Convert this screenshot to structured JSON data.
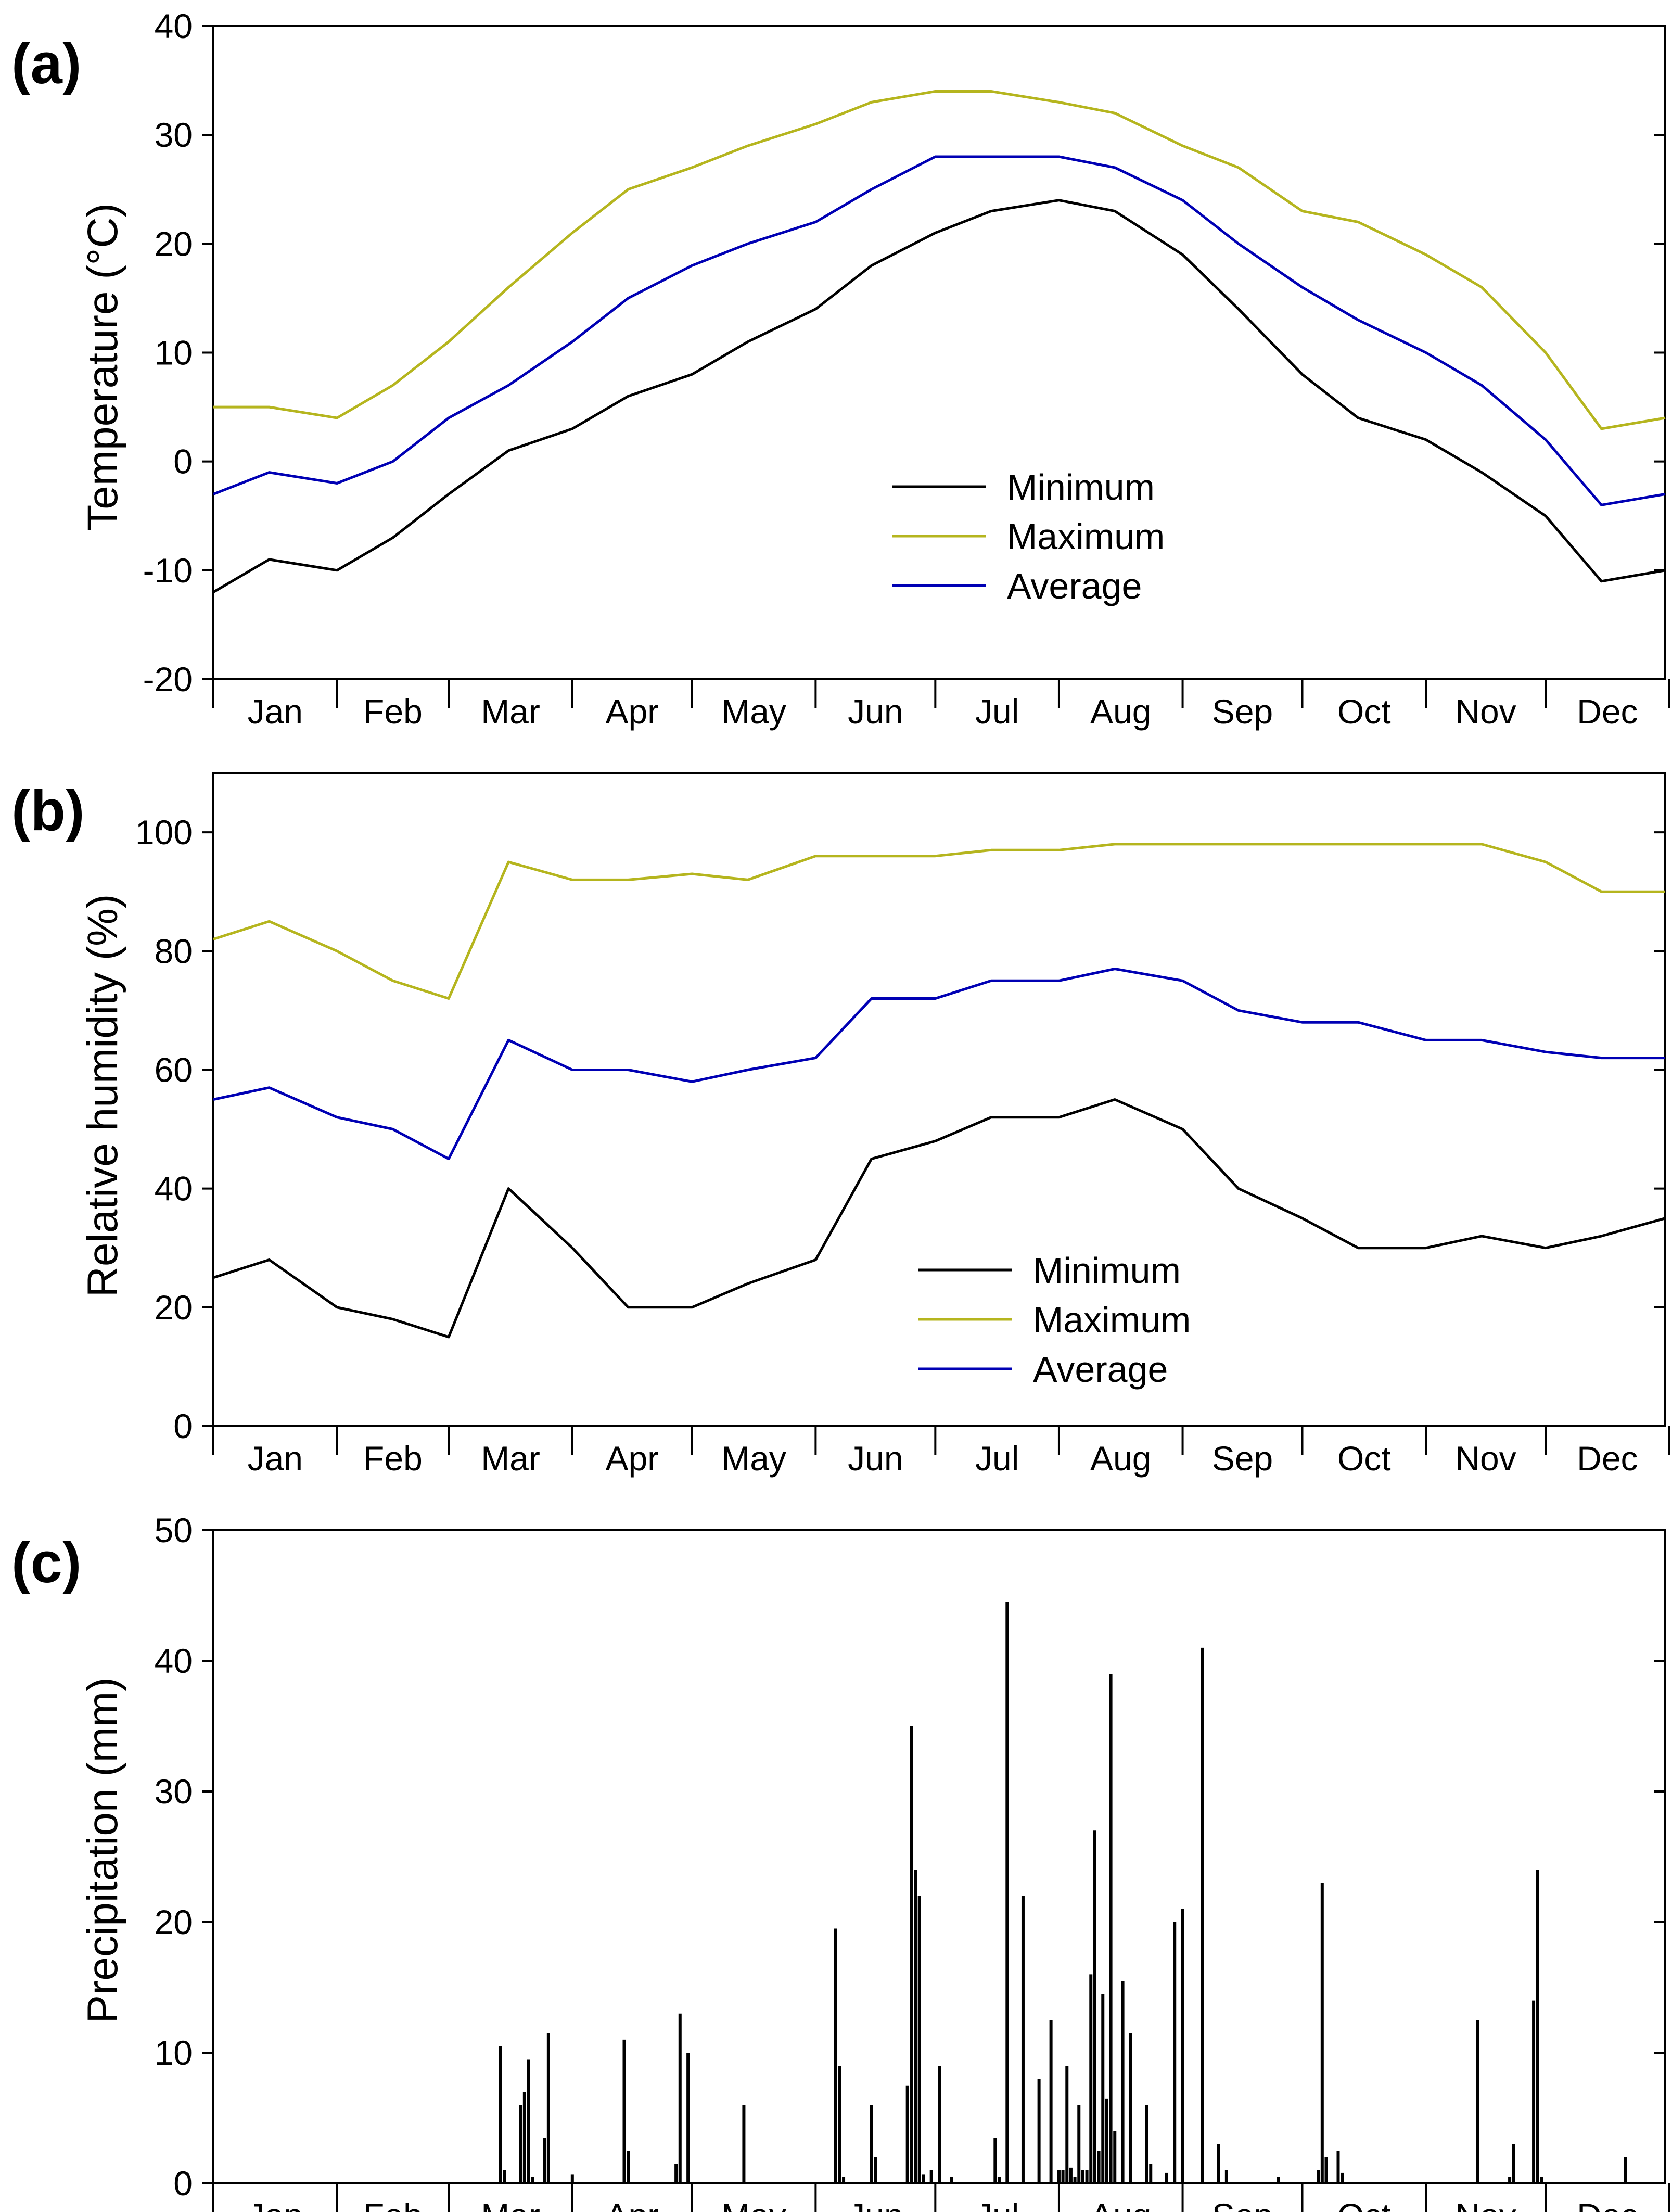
{
  "colors": {
    "minimum": "#000000",
    "maximum": "#b5b51e",
    "average": "#0000b4",
    "axis": "#000000"
  },
  "months": [
    "Jan",
    "Feb",
    "Mar",
    "Apr",
    "May",
    "Jun",
    "Jul",
    "Aug",
    "Sep",
    "Oct",
    "Nov",
    "Dec"
  ],
  "chart_data": [
    {
      "type": "line",
      "panel_label": "(a)",
      "ylabel": "Temperature (°C)",
      "xlabel": "",
      "x_unit": "day of year",
      "xlim": [
        1,
        365
      ],
      "ylim": [
        -20,
        40
      ],
      "yticks": [
        -20,
        -10,
        0,
        10,
        20,
        30,
        40
      ],
      "legend_position": "center",
      "series": [
        {
          "name": "Minimum",
          "color_key": "minimum",
          "x": [
            1,
            15,
            32,
            46,
            60,
            75,
            91,
            105,
            121,
            135,
            152,
            166,
            182,
            196,
            213,
            227,
            244,
            258,
            274,
            288,
            305,
            319,
            335,
            349,
            365
          ],
          "values": [
            -12,
            -9,
            -10,
            -7,
            -3,
            1,
            3,
            6,
            8,
            11,
            14,
            18,
            21,
            23,
            24,
            23,
            19,
            14,
            8,
            4,
            2,
            -1,
            -5,
            -11,
            -10
          ]
        },
        {
          "name": "Maximum",
          "color_key": "maximum",
          "x": [
            1,
            15,
            32,
            46,
            60,
            75,
            91,
            105,
            121,
            135,
            152,
            166,
            182,
            196,
            213,
            227,
            244,
            258,
            274,
            288,
            305,
            319,
            335,
            349,
            365
          ],
          "values": [
            5,
            5,
            4,
            7,
            11,
            16,
            21,
            25,
            27,
            29,
            31,
            33,
            34,
            34,
            33,
            32,
            29,
            27,
            23,
            22,
            19,
            16,
            10,
            3,
            4
          ]
        },
        {
          "name": "Average",
          "color_key": "average",
          "x": [
            1,
            15,
            32,
            46,
            60,
            75,
            91,
            105,
            121,
            135,
            152,
            166,
            182,
            196,
            213,
            227,
            244,
            258,
            274,
            288,
            305,
            319,
            335,
            349,
            365
          ],
          "values": [
            -3,
            -1,
            -2,
            0,
            4,
            7,
            11,
            15,
            18,
            20,
            22,
            25,
            28,
            28,
            28,
            27,
            24,
            20,
            16,
            13,
            10,
            7,
            2,
            -4,
            -3
          ]
        }
      ]
    },
    {
      "type": "line",
      "panel_label": "(b)",
      "ylabel": "Relative humidity (%)",
      "xlabel": "",
      "x_unit": "day of year",
      "xlim": [
        1,
        365
      ],
      "ylim": [
        0,
        110
      ],
      "yticks": [
        0,
        20,
        40,
        60,
        80,
        100
      ],
      "legend_position": "bottom-center",
      "series": [
        {
          "name": "Minimum",
          "color_key": "minimum",
          "x": [
            1,
            15,
            32,
            46,
            60,
            75,
            91,
            105,
            121,
            135,
            152,
            166,
            182,
            196,
            213,
            227,
            244,
            258,
            274,
            288,
            305,
            319,
            335,
            349,
            365
          ],
          "values": [
            25,
            28,
            20,
            18,
            15,
            40,
            30,
            20,
            20,
            24,
            28,
            45,
            48,
            52,
            52,
            55,
            50,
            40,
            35,
            30,
            30,
            32,
            30,
            32,
            35
          ]
        },
        {
          "name": "Maximum",
          "color_key": "maximum",
          "x": [
            1,
            15,
            32,
            46,
            60,
            75,
            91,
            105,
            121,
            135,
            152,
            166,
            182,
            196,
            213,
            227,
            244,
            258,
            274,
            288,
            305,
            319,
            335,
            349,
            365
          ],
          "values": [
            82,
            85,
            80,
            75,
            72,
            95,
            92,
            92,
            93,
            92,
            96,
            96,
            96,
            97,
            97,
            98,
            98,
            98,
            98,
            98,
            98,
            98,
            95,
            90,
            90
          ]
        },
        {
          "name": "Average",
          "color_key": "average",
          "x": [
            1,
            15,
            32,
            46,
            60,
            75,
            91,
            105,
            121,
            135,
            152,
            166,
            182,
            196,
            213,
            227,
            244,
            258,
            274,
            288,
            305,
            319,
            335,
            349,
            365
          ],
          "values": [
            55,
            57,
            52,
            50,
            45,
            65,
            60,
            60,
            58,
            60,
            62,
            72,
            72,
            75,
            75,
            77,
            75,
            70,
            68,
            68,
            65,
            65,
            63,
            62,
            62
          ]
        }
      ]
    },
    {
      "type": "bar",
      "panel_label": "(c)",
      "ylabel": "Precipitation (mm)",
      "xlabel": "",
      "x_unit": "day of year",
      "xlim": [
        1,
        365
      ],
      "ylim": [
        0,
        50
      ],
      "yticks": [
        0,
        10,
        20,
        30,
        40,
        50
      ],
      "x": [
        73,
        74,
        78,
        79,
        80,
        81,
        84,
        85,
        91,
        104,
        105,
        117,
        118,
        120,
        134,
        157,
        158,
        159,
        166,
        167,
        175,
        176,
        177,
        178,
        179,
        181,
        183,
        186,
        197,
        198,
        204,
        200,
        208,
        211,
        213,
        214,
        215,
        216,
        217,
        218,
        219,
        220,
        221,
        222,
        223,
        224,
        225,
        226,
        227,
        229,
        231,
        235,
        236,
        240,
        242,
        244,
        249,
        253,
        255,
        268,
        278,
        279,
        280,
        283,
        284,
        318,
        326,
        327,
        332,
        333,
        334,
        355
      ],
      "values": [
        10.5,
        1,
        6,
        7,
        9.5,
        0.5,
        3.5,
        11.5,
        0.7,
        11,
        2.5,
        1.5,
        13,
        10,
        6,
        19.5,
        9,
        0.5,
        6,
        2,
        7.5,
        35,
        24,
        22,
        0.7,
        1,
        9,
        0.5,
        3.5,
        0.5,
        22,
        44.5,
        8,
        12.5,
        1,
        1,
        9,
        1.2,
        0.5,
        6,
        1,
        1,
        16,
        27,
        2.5,
        14.5,
        6.5,
        39,
        4,
        15.5,
        11.5,
        6,
        1.5,
        0.8,
        20,
        21,
        41,
        3,
        1,
        0.5,
        1,
        23,
        2,
        2.5,
        0.8,
        12.5,
        0.5,
        3,
        14,
        24,
        0.5,
        2
      ]
    }
  ]
}
